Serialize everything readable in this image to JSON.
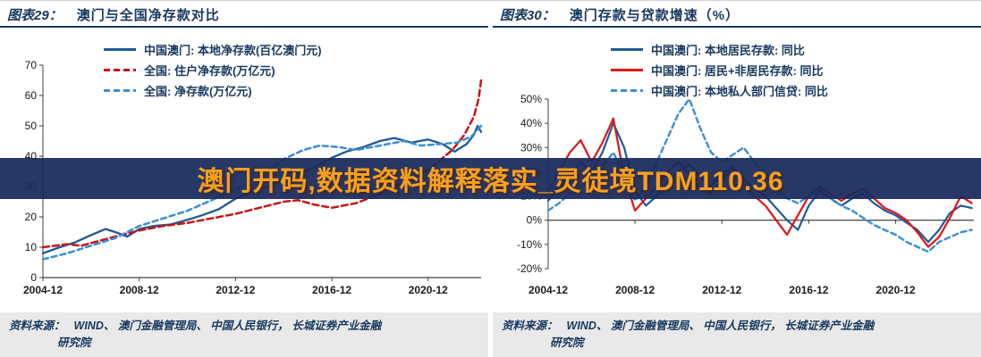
{
  "page": {
    "watermark_text": "澳门开码,数据资料解释落实_灵徒境TDM110.36"
  },
  "colors": {
    "navy": "#17375e",
    "axis": "#404040",
    "tick_text": "#1a1a1a",
    "footer_bg": "#e9e9e9",
    "watermark_bg": "#1a2a5cf0",
    "watermark_text": "#f8a01e"
  },
  "panels": [
    {
      "title_prefix": "图表29：",
      "title": "澳门与全国净存款对比",
      "source_label": "资料来源：",
      "source_line1": "WIND、 澳门金融管理局、 中国人民银行， 长城证券产业金融",
      "source_line2": "研究院"
    },
    {
      "title_prefix": "图表30：",
      "title": "澳门存款与贷款增速（%）",
      "source_label": "资料来源：",
      "source_line1": "WIND、 澳门金融管理局、 中国人民银行， 长城证券产业金融",
      "source_line2": "研究院"
    }
  ],
  "chart_data": [
    {
      "type": "line",
      "title": "澳门与全国净存款对比",
      "xlabel": "",
      "ylabel": "",
      "xlim": [
        2005,
        2023.2
      ],
      "ylim": [
        0,
        70
      ],
      "grid": false,
      "legend_position": "top-left-inside",
      "x_axis_at_value": 0,
      "x_ticks": [
        {
          "v": 2005,
          "label": "2004-12"
        },
        {
          "v": 2009,
          "label": "2008-12"
        },
        {
          "v": 2013,
          "label": "2012-12"
        },
        {
          "v": 2017,
          "label": "2016-12"
        },
        {
          "v": 2021,
          "label": "2020-12"
        }
      ],
      "y_ticks": [
        {
          "v": 0,
          "label": "0"
        },
        {
          "v": 10,
          "label": "10"
        },
        {
          "v": 20,
          "label": "20"
        },
        {
          "v": 30,
          "label": "30"
        },
        {
          "v": 40,
          "label": "40"
        },
        {
          "v": 50,
          "label": "50"
        },
        {
          "v": 60,
          "label": "60"
        },
        {
          "v": 70,
          "label": "70"
        }
      ],
      "series": [
        {
          "name": "中国澳门: 本地净存款(百亿澳门元)",
          "color": "#1f5a96",
          "dash": "solid",
          "width": 2.3,
          "points": [
            [
              2005,
              8
            ],
            [
              2005.7,
              10
            ],
            [
              2006.3,
              11.5
            ],
            [
              2007,
              14
            ],
            [
              2007.6,
              16
            ],
            [
              2008,
              15
            ],
            [
              2008.5,
              13.5
            ],
            [
              2009,
              16
            ],
            [
              2009.6,
              17
            ],
            [
              2010.3,
              17.5
            ],
            [
              2011,
              19
            ],
            [
              2011.6,
              20.5
            ],
            [
              2012.3,
              22.5
            ],
            [
              2013,
              26
            ],
            [
              2013.6,
              28
            ],
            [
              2014.3,
              30
            ],
            [
              2015,
              32
            ],
            [
              2015.6,
              34
            ],
            [
              2016.3,
              36.5
            ],
            [
              2017,
              39.5
            ],
            [
              2017.6,
              41.5
            ],
            [
              2018.3,
              43
            ],
            [
              2019,
              45
            ],
            [
              2019.6,
              46
            ],
            [
              2020.3,
              44.5
            ],
            [
              2021,
              45.5
            ],
            [
              2021.6,
              44
            ],
            [
              2022.1,
              41.5
            ],
            [
              2022.6,
              44
            ],
            [
              2022.9,
              47
            ],
            [
              2023.05,
              50
            ],
            [
              2023.2,
              48
            ]
          ]
        },
        {
          "name": "全国: 住户净存款(万亿元)",
          "color": "#c81414",
          "dash": "7 4",
          "width": 2.5,
          "points": [
            [
              2005,
              10
            ],
            [
              2006,
              11
            ],
            [
              2006.6,
              10.5
            ],
            [
              2007.3,
              12
            ],
            [
              2008,
              13.5
            ],
            [
              2009,
              15.5
            ],
            [
              2010,
              17
            ],
            [
              2011,
              18
            ],
            [
              2012,
              19.5
            ],
            [
              2013,
              21
            ],
            [
              2014,
              23
            ],
            [
              2015,
              25
            ],
            [
              2015.6,
              25.5
            ],
            [
              2016.3,
              24
            ],
            [
              2017,
              23
            ],
            [
              2018,
              24.5
            ],
            [
              2019,
              27.5
            ],
            [
              2020,
              31.5
            ],
            [
              2021,
              35.5
            ],
            [
              2022,
              42
            ],
            [
              2022.5,
              47
            ],
            [
              2022.9,
              53
            ],
            [
              2023.1,
              59
            ],
            [
              2023.2,
              65
            ]
          ]
        },
        {
          "name": "全国: 净存款(万亿元)",
          "color": "#3a8fd2",
          "dash": "6 4",
          "width": 2.5,
          "points": [
            [
              2005,
              6
            ],
            [
              2006,
              8
            ],
            [
              2007,
              10.5
            ],
            [
              2008,
              13
            ],
            [
              2009,
              17
            ],
            [
              2010,
              19.5
            ],
            [
              2011,
              22
            ],
            [
              2012,
              25.5
            ],
            [
              2013,
              29
            ],
            [
              2014,
              33.5
            ],
            [
              2015,
              39
            ],
            [
              2015.8,
              42
            ],
            [
              2016.5,
              43.5
            ],
            [
              2017.3,
              43
            ],
            [
              2018,
              42
            ],
            [
              2019,
              43.5
            ],
            [
              2020,
              45
            ],
            [
              2020.7,
              43.5
            ],
            [
              2021.5,
              44
            ],
            [
              2022.2,
              44.5
            ],
            [
              2022.8,
              46.5
            ],
            [
              2023.2,
              50
            ]
          ]
        }
      ]
    },
    {
      "type": "line",
      "title": "澳门存款与贷款增速（%）",
      "xlabel": "",
      "ylabel": "",
      "xlim": [
        2005,
        2024.6
      ],
      "ylim": [
        -20,
        50
      ],
      "grid": false,
      "legend_position": "top-center-inside",
      "x_axis_at_value": 0,
      "x_ticks": [
        {
          "v": 2005,
          "label": "2004-12"
        },
        {
          "v": 2009,
          "label": "2008-12"
        },
        {
          "v": 2013,
          "label": "2012-12"
        },
        {
          "v": 2017,
          "label": "2016-12"
        },
        {
          "v": 2021,
          "label": "2020-12"
        }
      ],
      "y_ticks": [
        {
          "v": -20,
          "label": "-20%"
        },
        {
          "v": -10,
          "label": "-10%"
        },
        {
          "v": 0,
          "label": "0%"
        },
        {
          "v": 10,
          "label": "10%"
        },
        {
          "v": 20,
          "label": "20%"
        },
        {
          "v": 30,
          "label": "30%"
        },
        {
          "v": 40,
          "label": "40%"
        },
        {
          "v": 50,
          "label": "50%"
        }
      ],
      "series": [
        {
          "name": "中国澳门: 本地居民存款: 同比",
          "color": "#1f5a96",
          "dash": "solid",
          "width": 2.2,
          "points": [
            [
              2005,
              8
            ],
            [
              2005.5,
              14
            ],
            [
              2006,
              18
            ],
            [
              2006.5,
              24
            ],
            [
              2007,
              20
            ],
            [
              2007.5,
              28
            ],
            [
              2008,
              40
            ],
            [
              2008.5,
              30
            ],
            [
              2009,
              12
            ],
            [
              2009.5,
              6
            ],
            [
              2010,
              10
            ],
            [
              2010.5,
              16
            ],
            [
              2011,
              20
            ],
            [
              2011.5,
              23
            ],
            [
              2012,
              18
            ],
            [
              2012.5,
              14
            ],
            [
              2013,
              19
            ],
            [
              2013.5,
              22
            ],
            [
              2014,
              17
            ],
            [
              2014.5,
              13
            ],
            [
              2015,
              10
            ],
            [
              2015.5,
              5
            ],
            [
              2016,
              0
            ],
            [
              2016.5,
              -4
            ],
            [
              2017,
              6
            ],
            [
              2017.5,
              12
            ],
            [
              2018,
              9
            ],
            [
              2018.5,
              6
            ],
            [
              2019,
              9
            ],
            [
              2019.5,
              11
            ],
            [
              2020,
              7
            ],
            [
              2020.5,
              4
            ],
            [
              2021,
              2
            ],
            [
              2021.5,
              -1
            ],
            [
              2022,
              -4
            ],
            [
              2022.5,
              -9
            ],
            [
              2023,
              -4
            ],
            [
              2023.5,
              3
            ],
            [
              2024,
              6
            ],
            [
              2024.5,
              5
            ]
          ]
        },
        {
          "name": "中国澳门: 居民+非居民存款: 同比",
          "color": "#e11414",
          "dash": "solid",
          "width": 2.2,
          "points": [
            [
              2005,
              12
            ],
            [
              2005.5,
              20
            ],
            [
              2006,
              28
            ],
            [
              2006.5,
              33
            ],
            [
              2007,
              24
            ],
            [
              2007.5,
              32
            ],
            [
              2008,
              42
            ],
            [
              2008.5,
              18
            ],
            [
              2009,
              4
            ],
            [
              2009.5,
              9
            ],
            [
              2010,
              14
            ],
            [
              2010.5,
              20
            ],
            [
              2011,
              24
            ],
            [
              2011.5,
              19
            ],
            [
              2012,
              13
            ],
            [
              2012.5,
              11
            ],
            [
              2013,
              17
            ],
            [
              2013.5,
              21
            ],
            [
              2014,
              15
            ],
            [
              2014.5,
              10
            ],
            [
              2015,
              6
            ],
            [
              2015.5,
              0
            ],
            [
              2016,
              -6
            ],
            [
              2016.5,
              2
            ],
            [
              2017,
              10
            ],
            [
              2017.5,
              14
            ],
            [
              2018,
              11
            ],
            [
              2018.5,
              8
            ],
            [
              2019,
              11
            ],
            [
              2019.5,
              13
            ],
            [
              2020,
              9
            ],
            [
              2020.5,
              5
            ],
            [
              2021,
              3
            ],
            [
              2021.5,
              0
            ],
            [
              2022,
              -5
            ],
            [
              2022.5,
              -11
            ],
            [
              2023,
              -7
            ],
            [
              2023.5,
              1
            ],
            [
              2024,
              10
            ],
            [
              2024.5,
              7
            ]
          ]
        },
        {
          "name": "中国澳门: 本地私人部门信贷: 同比",
          "color": "#3a8fd2",
          "dash": "6 4",
          "width": 2.4,
          "points": [
            [
              2005,
              4
            ],
            [
              2005.5,
              7
            ],
            [
              2006,
              11
            ],
            [
              2006.5,
              14
            ],
            [
              2007,
              18
            ],
            [
              2007.5,
              22
            ],
            [
              2008,
              28
            ],
            [
              2008.5,
              18
            ],
            [
              2009,
              8
            ],
            [
              2009.5,
              14
            ],
            [
              2010,
              24
            ],
            [
              2010.5,
              34
            ],
            [
              2011,
              44
            ],
            [
              2011.5,
              50
            ],
            [
              2012,
              38
            ],
            [
              2012.5,
              28
            ],
            [
              2013,
              24
            ],
            [
              2013.5,
              27
            ],
            [
              2014,
              30
            ],
            [
              2014.5,
              24
            ],
            [
              2015,
              18
            ],
            [
              2015.5,
              13
            ],
            [
              2016,
              9
            ],
            [
              2016.5,
              7
            ],
            [
              2017,
              10
            ],
            [
              2017.5,
              13
            ],
            [
              2018,
              9
            ],
            [
              2018.5,
              6
            ],
            [
              2019,
              4
            ],
            [
              2019.5,
              1
            ],
            [
              2020,
              -2
            ],
            [
              2020.5,
              -4
            ],
            [
              2021,
              -6
            ],
            [
              2021.5,
              -9
            ],
            [
              2022,
              -11
            ],
            [
              2022.5,
              -13
            ],
            [
              2023,
              -9
            ],
            [
              2023.5,
              -7
            ],
            [
              2024,
              -5
            ],
            [
              2024.5,
              -4
            ]
          ]
        }
      ]
    }
  ]
}
